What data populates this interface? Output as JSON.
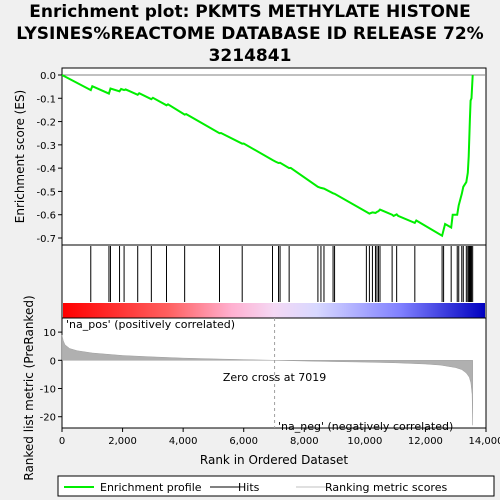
{
  "title_lines": [
    "Enrichment plot: PKMTS METHYLATE HISTONE",
    "LYSINES%REACTOME DATABASE ID RELEASE 72%",
    "3214841"
  ],
  "chart_data": {
    "type": "line",
    "top_panel": {
      "ylabel": "Enrichment score (ES)",
      "ylim": [
        -0.73,
        0.03
      ],
      "yticks": [
        0.0,
        -0.1,
        -0.2,
        -0.3,
        -0.4,
        -0.5,
        -0.6,
        -0.7
      ],
      "ytick_labels": [
        "0.0",
        "-0.1",
        "-0.2",
        "-0.3",
        "-0.4",
        "-0.5",
        "-0.6",
        "-0.7"
      ],
      "series": {
        "name": "Enrichment profile",
        "color": "#00ee00",
        "points": [
          [
            0,
            0.0
          ],
          [
            950,
            -0.065
          ],
          [
            1000,
            -0.048
          ],
          [
            1550,
            -0.08
          ],
          [
            1600,
            -0.058
          ],
          [
            1900,
            -0.07
          ],
          [
            1950,
            -0.06
          ],
          [
            2050,
            -0.065
          ],
          [
            2100,
            -0.062
          ],
          [
            2500,
            -0.085
          ],
          [
            2550,
            -0.078
          ],
          [
            2950,
            -0.104
          ],
          [
            3000,
            -0.098
          ],
          [
            3450,
            -0.13
          ],
          [
            3500,
            -0.126
          ],
          [
            4050,
            -0.17
          ],
          [
            4100,
            -0.168
          ],
          [
            5200,
            -0.25
          ],
          [
            5250,
            -0.249
          ],
          [
            5950,
            -0.295
          ],
          [
            6000,
            -0.294
          ],
          [
            6950,
            -0.365
          ],
          [
            7050,
            -0.372
          ],
          [
            7150,
            -0.378
          ],
          [
            7200,
            -0.377
          ],
          [
            7500,
            -0.4
          ],
          [
            7550,
            -0.399
          ],
          [
            8450,
            -0.48
          ],
          [
            8550,
            -0.485
          ],
          [
            8650,
            -0.488
          ],
          [
            8950,
            -0.508
          ],
          [
            9000,
            -0.51
          ],
          [
            10050,
            -0.588
          ],
          [
            10150,
            -0.595
          ],
          [
            10250,
            -0.59
          ],
          [
            10350,
            -0.592
          ],
          [
            10400,
            -0.588
          ],
          [
            10450,
            -0.585
          ],
          [
            10500,
            -0.578
          ],
          [
            10900,
            -0.6
          ],
          [
            10950,
            -0.605
          ],
          [
            11050,
            -0.598
          ],
          [
            11100,
            -0.605
          ],
          [
            11650,
            -0.635
          ],
          [
            11700,
            -0.625
          ],
          [
            12550,
            -0.69
          ],
          [
            12600,
            -0.665
          ],
          [
            12650,
            -0.64
          ],
          [
            12850,
            -0.655
          ],
          [
            12900,
            -0.6
          ],
          [
            13050,
            -0.6
          ],
          [
            13100,
            -0.56
          ],
          [
            13200,
            -0.51
          ],
          [
            13250,
            -0.48
          ],
          [
            13350,
            -0.46
          ],
          [
            13400,
            -0.42
          ],
          [
            13430,
            -0.35
          ],
          [
            13450,
            -0.27
          ],
          [
            13470,
            -0.19
          ],
          [
            13490,
            -0.11
          ],
          [
            13520,
            -0.1
          ],
          [
            13560,
            0.0
          ]
        ]
      }
    },
    "hits": [
      950,
      1550,
      1600,
      1900,
      2050,
      2500,
      2950,
      3450,
      4050,
      5200,
      5950,
      6950,
      7150,
      7200,
      7500,
      8450,
      8550,
      8650,
      8950,
      9000,
      10050,
      10150,
      10250,
      10350,
      10400,
      10450,
      10500,
      10900,
      11050,
      11650,
      12550,
      12600,
      12850,
      13050,
      13100,
      13200,
      13250,
      13350,
      13400,
      13430,
      13450,
      13470,
      13490,
      13520,
      13560
    ],
    "ranked_metric": {
      "ylabel": "Ranked list metric (PreRanked)",
      "ylim": [
        -24,
        15
      ],
      "yticks": [
        10,
        0,
        -10,
        -20
      ],
      "ytick_labels": [
        "10",
        "0",
        "-10",
        "-20"
      ],
      "curve": [
        [
          0,
          9.0
        ],
        [
          40,
          7.0
        ],
        [
          100,
          5.5
        ],
        [
          250,
          4.2
        ],
        [
          500,
          3.4
        ],
        [
          1000,
          2.6
        ],
        [
          2000,
          1.7
        ],
        [
          3000,
          1.2
        ],
        [
          4000,
          0.8
        ],
        [
          5000,
          0.5
        ],
        [
          6000,
          0.25
        ],
        [
          7019,
          0.0
        ],
        [
          8000,
          -0.25
        ],
        [
          9000,
          -0.45
        ],
        [
          10000,
          -0.65
        ],
        [
          11000,
          -0.9
        ],
        [
          12000,
          -1.3
        ],
        [
          12500,
          -1.7
        ],
        [
          13000,
          -2.6
        ],
        [
          13200,
          -3.3
        ],
        [
          13350,
          -4.5
        ],
        [
          13450,
          -6.0
        ],
        [
          13500,
          -8.0
        ],
        [
          13540,
          -12.0
        ],
        [
          13560,
          -23.0
        ]
      ],
      "zero_cross_label": "Zero cross at 7019",
      "zero_cross": 7019,
      "pos_label": "'na_pos' (positively correlated)",
      "neg_label": "'na_neg' (negatively correlated)"
    },
    "xlabel": "Rank in Ordered Dataset",
    "xlim": [
      0,
      14000
    ],
    "xticks": [
      0,
      2000,
      4000,
      6000,
      8000,
      10000,
      12000,
      14000
    ],
    "xtick_labels": [
      "0",
      "2,000",
      "4,000",
      "6,000",
      "8,000",
      "10,000",
      "12,000",
      "14,000"
    ],
    "legend": [
      {
        "label": "Enrichment profile",
        "color": "#00ee00"
      },
      {
        "label": "Hits",
        "color": "#000000"
      },
      {
        "label": "Ranking metric scores",
        "color": "#c0c0c0"
      }
    ],
    "colors": {
      "pos_label": "#cc0000",
      "neg_label": "#0000cc",
      "metric_fill": "#b0b0b0"
    }
  }
}
